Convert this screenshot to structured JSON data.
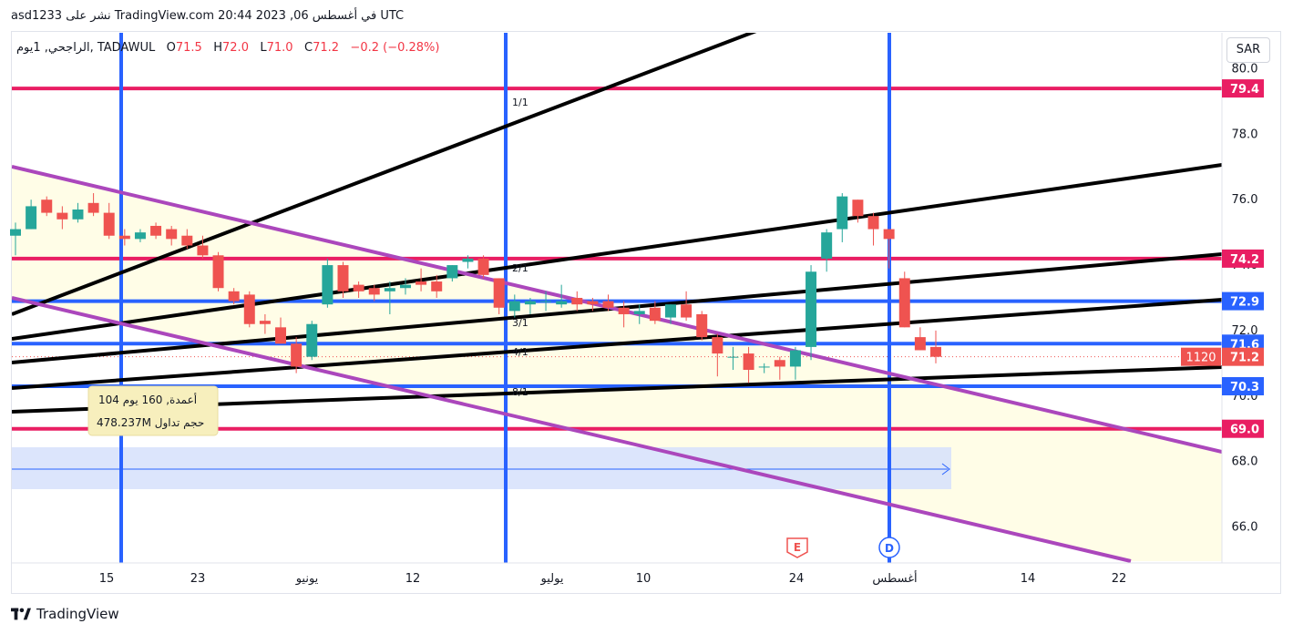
{
  "header": {
    "published": "asd1233 نشر على TradingView.com في أغسطس 06, 2023 20:44 UTC"
  },
  "legend": {
    "symbol": "الراجحي, 1يوم, TADAWUL",
    "o_label": "O",
    "o_value": "71.5",
    "h_label": "H",
    "h_value": "72.0",
    "l_label": "L",
    "l_value": "71.0",
    "c_label": "C",
    "c_value": "71.2",
    "change": "−0.2 (−0.28%)"
  },
  "currency_button": "SAR",
  "footer": {
    "brand": "TradingView"
  },
  "colors": {
    "up": "#26a69a",
    "down": "#ef5350",
    "blue_line": "#2962ff",
    "red_line": "#e91e63",
    "purple_line": "#ab47bc",
    "black_line": "#000000"
  },
  "chart_data": {
    "type": "candlestick",
    "ylim": [
      64.9,
      81.1
    ],
    "price_axis_ticks": [
      "80.0",
      "78.0",
      "76.0",
      "74.0",
      "72.0",
      "70.0",
      "68.0",
      "66.0"
    ],
    "price_axis_ticks_values": [
      80,
      78,
      76,
      74,
      72,
      70,
      68,
      66
    ],
    "time_axis_ticks": [
      "15",
      "23",
      "يونيو",
      "12",
      "يوليو",
      "10",
      "24",
      "أغسطس",
      "14",
      "22"
    ],
    "horizontal_levels": [
      {
        "label": "79.4",
        "value": 79.4,
        "color": "#e91e63"
      },
      {
        "label": "74.2",
        "value": 74.2,
        "color": "#e91e63"
      },
      {
        "label": "72.9",
        "value": 72.9,
        "color": "#2962ff"
      },
      {
        "label": "71.6",
        "value": 71.6,
        "color": "#2962ff"
      },
      {
        "label": "70.3",
        "value": 70.3,
        "color": "#2962ff"
      },
      {
        "label": "69.0",
        "value": 69.0,
        "color": "#e91e63"
      }
    ],
    "last_price": {
      "label": "71.2",
      "value": 71.2,
      "countdown": "1120"
    },
    "fib_fan_labels": [
      "1/1",
      "2/1",
      "3/1",
      "4/1",
      "8/1"
    ],
    "events": [
      "E",
      "D"
    ],
    "volume_tooltip": {
      "line1": "104 أعمدة, 160 يوم",
      "line2": "478.237M حجم تداول"
    },
    "candles": [
      {
        "o": 74.9,
        "h": 75.3,
        "l": 74.3,
        "c": 75.1
      },
      {
        "o": 75.1,
        "h": 76.0,
        "l": 75.1,
        "c": 75.8
      },
      {
        "o": 76.0,
        "h": 76.1,
        "l": 75.5,
        "c": 75.6
      },
      {
        "o": 75.6,
        "h": 75.8,
        "l": 75.1,
        "c": 75.4
      },
      {
        "o": 75.4,
        "h": 75.9,
        "l": 75.3,
        "c": 75.7
      },
      {
        "o": 75.9,
        "h": 76.2,
        "l": 75.5,
        "c": 75.6
      },
      {
        "o": 75.6,
        "h": 75.9,
        "l": 74.8,
        "c": 74.9
      },
      {
        "o": 74.9,
        "h": 75.1,
        "l": 74.6,
        "c": 74.8
      },
      {
        "o": 74.8,
        "h": 75.1,
        "l": 74.7,
        "c": 75.0
      },
      {
        "o": 75.2,
        "h": 75.3,
        "l": 74.8,
        "c": 74.9
      },
      {
        "o": 75.1,
        "h": 75.2,
        "l": 74.6,
        "c": 74.8
      },
      {
        "o": 74.9,
        "h": 75.1,
        "l": 74.5,
        "c": 74.6
      },
      {
        "o": 74.6,
        "h": 74.9,
        "l": 74.2,
        "c": 74.3
      },
      {
        "o": 74.3,
        "h": 74.4,
        "l": 73.2,
        "c": 73.3
      },
      {
        "o": 73.2,
        "h": 73.3,
        "l": 72.8,
        "c": 72.9
      },
      {
        "o": 73.1,
        "h": 73.2,
        "l": 72.1,
        "c": 72.2
      },
      {
        "o": 72.3,
        "h": 72.5,
        "l": 71.9,
        "c": 72.2
      },
      {
        "o": 72.1,
        "h": 72.4,
        "l": 71.6,
        "c": 71.6
      },
      {
        "o": 71.6,
        "h": 71.8,
        "l": 70.7,
        "c": 70.9
      },
      {
        "o": 71.2,
        "h": 72.3,
        "l": 71.1,
        "c": 72.2
      },
      {
        "o": 72.8,
        "h": 74.2,
        "l": 72.7,
        "c": 74.0
      },
      {
        "o": 74.0,
        "h": 74.1,
        "l": 73.0,
        "c": 73.2
      },
      {
        "o": 73.4,
        "h": 73.5,
        "l": 73.0,
        "c": 73.2
      },
      {
        "o": 73.3,
        "h": 73.4,
        "l": 72.9,
        "c": 73.1
      },
      {
        "o": 73.2,
        "h": 73.5,
        "l": 72.5,
        "c": 73.3
      },
      {
        "o": 73.3,
        "h": 73.6,
        "l": 73.1,
        "c": 73.4
      },
      {
        "o": 73.5,
        "h": 73.9,
        "l": 73.2,
        "c": 73.4
      },
      {
        "o": 73.5,
        "h": 73.7,
        "l": 73.0,
        "c": 73.2
      },
      {
        "o": 73.6,
        "h": 74.0,
        "l": 73.5,
        "c": 74.0
      },
      {
        "o": 74.1,
        "h": 74.3,
        "l": 73.9,
        "c": 74.2
      },
      {
        "o": 74.2,
        "h": 74.3,
        "l": 73.6,
        "c": 73.7
      },
      {
        "o": 73.6,
        "h": 73.6,
        "l": 72.5,
        "c": 72.7
      },
      {
        "o": 72.6,
        "h": 73.1,
        "l": 72.4,
        "c": 72.9
      },
      {
        "o": 72.8,
        "h": 73.0,
        "l": 72.5,
        "c": 72.9
      },
      {
        "o": 72.9,
        "h": 73.2,
        "l": 72.6,
        "c": 72.9
      },
      {
        "o": 72.8,
        "h": 73.4,
        "l": 72.7,
        "c": 72.9
      },
      {
        "o": 73.0,
        "h": 73.2,
        "l": 72.6,
        "c": 72.8
      },
      {
        "o": 72.9,
        "h": 73.0,
        "l": 72.6,
        "c": 72.8
      },
      {
        "o": 72.9,
        "h": 73.1,
        "l": 72.6,
        "c": 72.7
      },
      {
        "o": 72.7,
        "h": 72.9,
        "l": 72.1,
        "c": 72.5
      },
      {
        "o": 72.5,
        "h": 72.8,
        "l": 72.2,
        "c": 72.6
      },
      {
        "o": 72.7,
        "h": 72.9,
        "l": 72.2,
        "c": 72.3
      },
      {
        "o": 72.4,
        "h": 72.8,
        "l": 72.2,
        "c": 72.8
      },
      {
        "o": 72.8,
        "h": 73.2,
        "l": 72.3,
        "c": 72.4
      },
      {
        "o": 72.5,
        "h": 72.6,
        "l": 71.7,
        "c": 71.8
      },
      {
        "o": 71.8,
        "h": 71.9,
        "l": 70.6,
        "c": 71.3
      },
      {
        "o": 71.2,
        "h": 71.5,
        "l": 70.8,
        "c": 71.2
      },
      {
        "o": 71.3,
        "h": 71.5,
        "l": 70.4,
        "c": 70.8
      },
      {
        "o": 70.9,
        "h": 71.0,
        "l": 70.7,
        "c": 70.9
      },
      {
        "o": 71.1,
        "h": 71.2,
        "l": 70.5,
        "c": 70.9
      },
      {
        "o": 70.9,
        "h": 71.5,
        "l": 70.5,
        "c": 71.4
      },
      {
        "o": 71.5,
        "h": 74.0,
        "l": 71.1,
        "c": 73.8
      },
      {
        "o": 74.2,
        "h": 75.1,
        "l": 73.8,
        "c": 75.0
      },
      {
        "o": 75.1,
        "h": 76.2,
        "l": 74.7,
        "c": 76.1
      },
      {
        "o": 76.0,
        "h": 76.0,
        "l": 75.3,
        "c": 75.5
      },
      {
        "o": 75.5,
        "h": 75.6,
        "l": 74.6,
        "c": 75.1
      },
      {
        "o": 75.1,
        "h": 75.1,
        "l": 73.9,
        "c": 74.8
      },
      {
        "o": 73.6,
        "h": 73.8,
        "l": 72.1,
        "c": 72.1
      },
      {
        "o": 71.8,
        "h": 72.1,
        "l": 71.4,
        "c": 71.4
      },
      {
        "o": 71.5,
        "h": 72.0,
        "l": 71.0,
        "c": 71.2
      }
    ]
  }
}
